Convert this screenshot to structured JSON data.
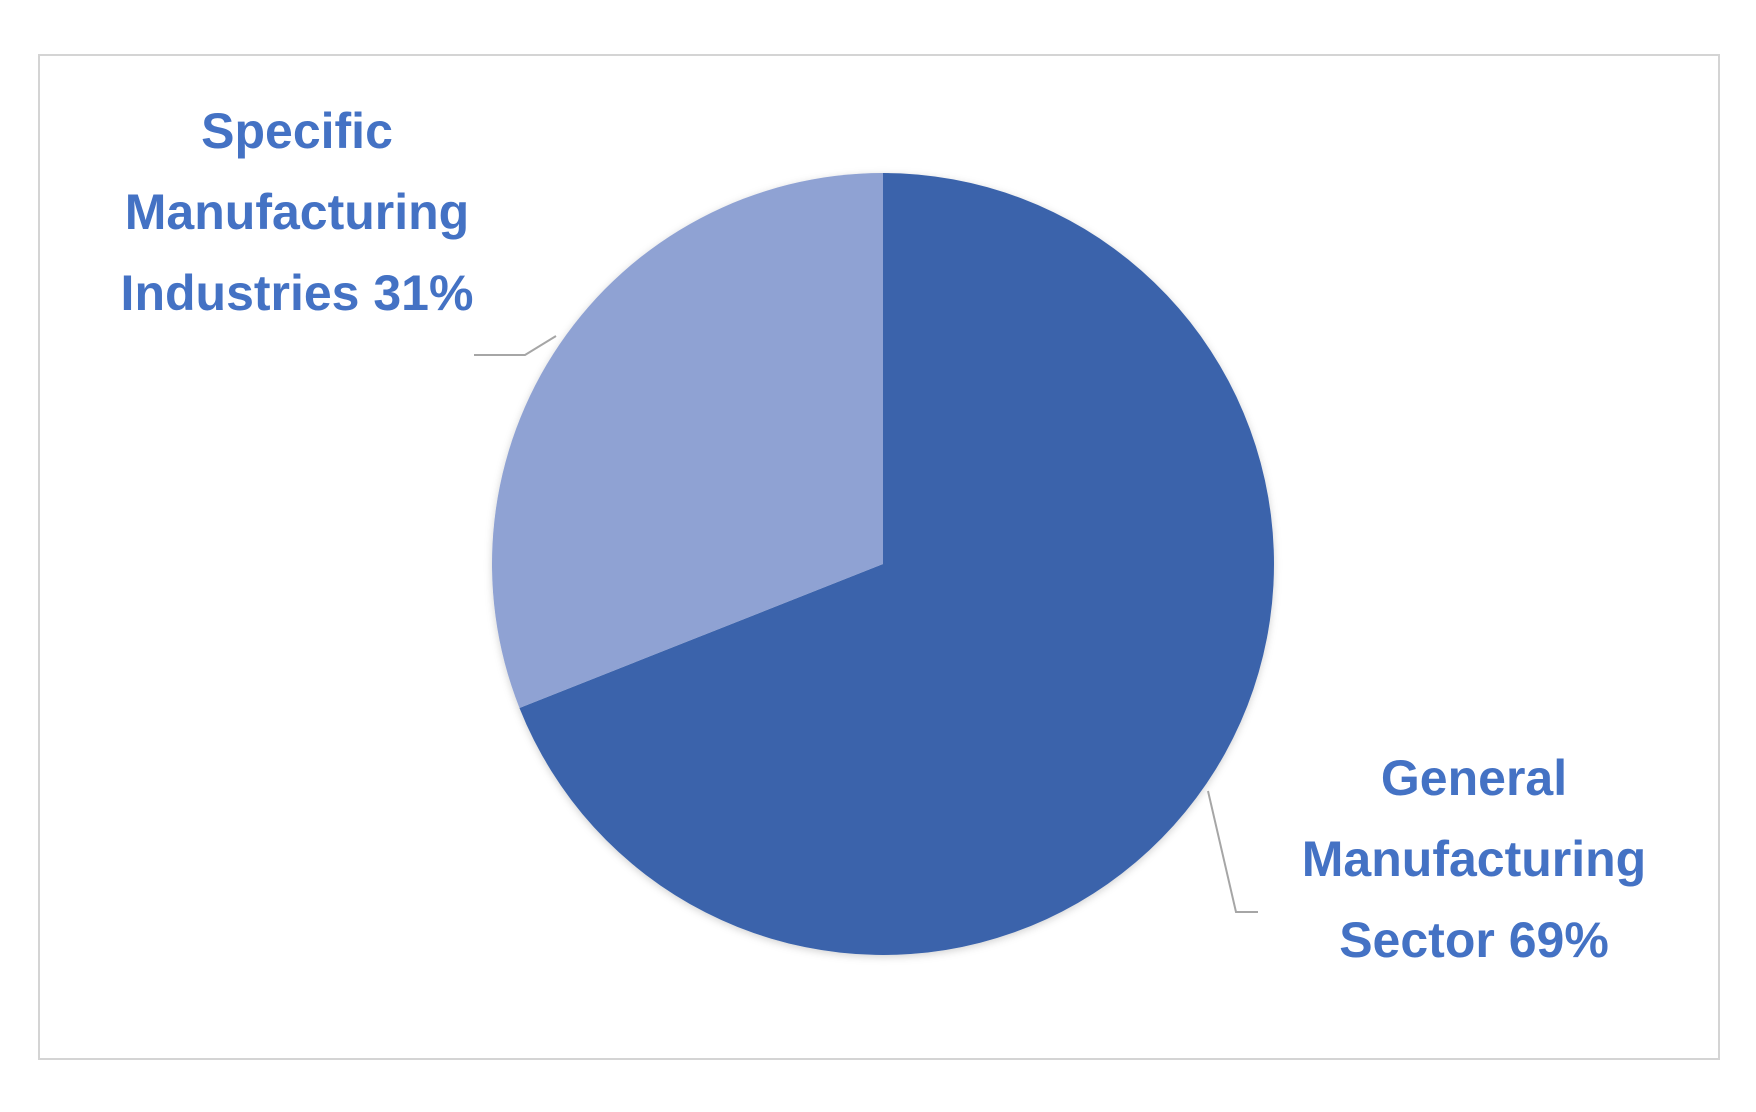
{
  "chart_data": {
    "type": "pie",
    "slices": [
      {
        "name": "General Manufacturing Sector",
        "value": 69,
        "label_lines": [
          "General",
          "Manufacturing",
          "Sector 69%"
        ],
        "color": "#3a63ab"
      },
      {
        "name": "Specific Manufacturing Industries",
        "value": 31,
        "label_lines": [
          "Specific",
          "Manufacturing",
          "Industries 31%"
        ],
        "color": "#8fa2d3"
      }
    ],
    "start_angle_deg": 0,
    "direction": "clockwise",
    "label_color": "#4472c4",
    "leader_line_color": "#a6a6a6"
  }
}
